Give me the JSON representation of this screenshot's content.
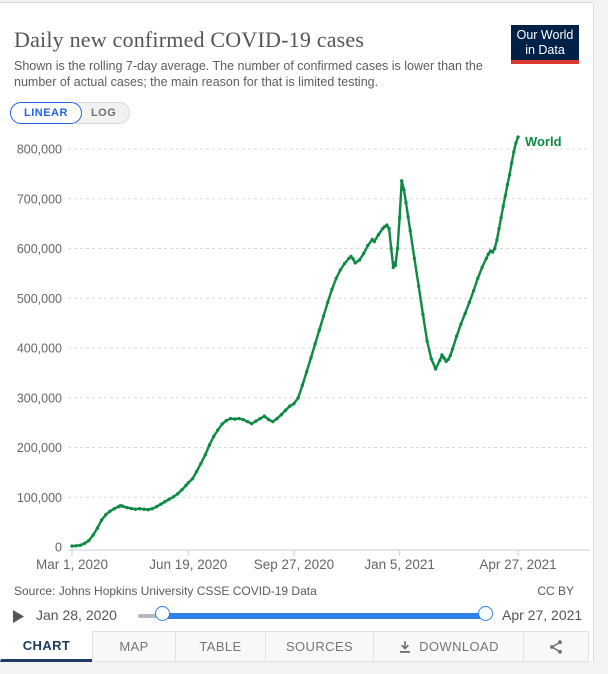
{
  "header": {
    "title": "Daily new confirmed COVID-19 cases",
    "subtitle": "Shown is the rolling 7-day average. The number of confirmed cases is lower than the number of actual cases; the main reason for that is limited testing.",
    "logo_line1": "Our World",
    "logo_line2": "in Data"
  },
  "controls": {
    "linear_label": "LINEAR",
    "log_label": "LOG"
  },
  "chart_data": {
    "type": "line",
    "title": "Daily new confirmed COVID-19 cases",
    "x_start_date": "2020-03-01",
    "x_unit": "days since Mar 1, 2020",
    "xlim_days": [
      0,
      422
    ],
    "ylim": [
      0,
      800000
    ],
    "grid": "dashed-horizontal",
    "legend": "inline-end-label",
    "y_ticks": [
      0,
      100000,
      200000,
      300000,
      400000,
      500000,
      600000,
      700000,
      800000
    ],
    "x_ticks": [
      {
        "d": 0,
        "label": "Mar 1, 2020"
      },
      {
        "d": 110,
        "label": "Jun 19, 2020"
      },
      {
        "d": 210,
        "label": "Sep 27, 2020"
      },
      {
        "d": 310,
        "label": "Jan 5, 2021"
      },
      {
        "d": 422,
        "label": "Apr 27, 2021"
      }
    ],
    "series": [
      {
        "name": "World",
        "color": "#0d8a43",
        "points": [
          [
            0,
            1800
          ],
          [
            4,
            2400
          ],
          [
            8,
            3600
          ],
          [
            12,
            7500
          ],
          [
            16,
            13000
          ],
          [
            20,
            24000
          ],
          [
            24,
            38000
          ],
          [
            28,
            54000
          ],
          [
            32,
            65000
          ],
          [
            36,
            72000
          ],
          [
            40,
            77000
          ],
          [
            44,
            81000
          ],
          [
            46,
            83000
          ],
          [
            48,
            82000
          ],
          [
            52,
            79000
          ],
          [
            56,
            77500
          ],
          [
            60,
            76000
          ],
          [
            64,
            77000
          ],
          [
            68,
            76000
          ],
          [
            72,
            75000
          ],
          [
            76,
            77000
          ],
          [
            80,
            81000
          ],
          [
            84,
            86000
          ],
          [
            88,
            91000
          ],
          [
            92,
            96000
          ],
          [
            96,
            101000
          ],
          [
            100,
            107000
          ],
          [
            104,
            115000
          ],
          [
            108,
            124000
          ],
          [
            110,
            129000
          ],
          [
            114,
            137000
          ],
          [
            118,
            152000
          ],
          [
            122,
            168000
          ],
          [
            126,
            185000
          ],
          [
            130,
            205000
          ],
          [
            134,
            222000
          ],
          [
            138,
            235000
          ],
          [
            142,
            247000
          ],
          [
            146,
            254000
          ],
          [
            150,
            258000
          ],
          [
            154,
            257000
          ],
          [
            158,
            258000
          ],
          [
            162,
            256000
          ],
          [
            166,
            252000
          ],
          [
            170,
            248000
          ],
          [
            174,
            253000
          ],
          [
            178,
            258000
          ],
          [
            182,
            263000
          ],
          [
            186,
            256000
          ],
          [
            190,
            252000
          ],
          [
            194,
            258000
          ],
          [
            198,
            266000
          ],
          [
            202,
            275000
          ],
          [
            206,
            283000
          ],
          [
            210,
            288000
          ],
          [
            214,
            300000
          ],
          [
            218,
            325000
          ],
          [
            222,
            352000
          ],
          [
            226,
            380000
          ],
          [
            230,
            408000
          ],
          [
            234,
            436000
          ],
          [
            238,
            464000
          ],
          [
            242,
            492000
          ],
          [
            246,
            518000
          ],
          [
            250,
            540000
          ],
          [
            254,
            557000
          ],
          [
            258,
            570000
          ],
          [
            262,
            580000
          ],
          [
            264,
            584000
          ],
          [
            266,
            579000
          ],
          [
            268,
            571000
          ],
          [
            272,
            577000
          ],
          [
            276,
            590000
          ],
          [
            280,
            606000
          ],
          [
            284,
            618000
          ],
          [
            286,
            614000
          ],
          [
            290,
            628000
          ],
          [
            294,
            640000
          ],
          [
            296,
            644000
          ],
          [
            298,
            647000
          ],
          [
            300,
            640000
          ],
          [
            302,
            600000
          ],
          [
            304,
            562000
          ],
          [
            305,
            571000
          ],
          [
            306,
            566000
          ],
          [
            308,
            600000
          ],
          [
            310,
            662000
          ],
          [
            312,
            736000
          ],
          [
            314,
            718000
          ],
          [
            316,
            692000
          ],
          [
            318,
            664000
          ],
          [
            320,
            636000
          ],
          [
            324,
            580000
          ],
          [
            328,
            524000
          ],
          [
            332,
            468000
          ],
          [
            336,
            414000
          ],
          [
            340,
            378000
          ],
          [
            344,
            358000
          ],
          [
            348,
            375000
          ],
          [
            350,
            386000
          ],
          [
            352,
            380000
          ],
          [
            354,
            373000
          ],
          [
            356,
            377000
          ],
          [
            358,
            385000
          ],
          [
            360,
            398000
          ],
          [
            364,
            424000
          ],
          [
            368,
            448000
          ],
          [
            372,
            470000
          ],
          [
            376,
            492000
          ],
          [
            380,
            515000
          ],
          [
            384,
            540000
          ],
          [
            388,
            562000
          ],
          [
            392,
            580000
          ],
          [
            394,
            589000
          ],
          [
            396,
            595000
          ],
          [
            398,
            593000
          ],
          [
            400,
            600000
          ],
          [
            402,
            617000
          ],
          [
            404,
            640000
          ],
          [
            406,
            662000
          ],
          [
            408,
            685000
          ],
          [
            410,
            706000
          ],
          [
            412,
            728000
          ],
          [
            414,
            748000
          ],
          [
            416,
            772000
          ],
          [
            418,
            794000
          ],
          [
            420,
            812000
          ],
          [
            422,
            824000
          ]
        ]
      }
    ]
  },
  "footer": {
    "source_text": "Source: Johns Hopkins University CSSE COVID-19 Data",
    "license": "CC BY"
  },
  "timeline": {
    "start_label": "Jan 28, 2020",
    "end_label": "Apr 27, 2021"
  },
  "tabs": [
    {
      "label": "CHART",
      "active": true
    },
    {
      "label": "MAP",
      "active": false
    },
    {
      "label": "TABLE",
      "active": false
    },
    {
      "label": "SOURCES",
      "active": false
    },
    {
      "label": "DOWNLOAD",
      "active": false
    },
    {
      "label": "",
      "active": false
    }
  ],
  "colors": {
    "line_green": "#0d8a43",
    "slider_blue": "#3080e8",
    "linear_blue": "#2163e8",
    "active_navy": "#1d3d63",
    "logo_navy": "#002147",
    "logo_red": "#d73a33"
  }
}
